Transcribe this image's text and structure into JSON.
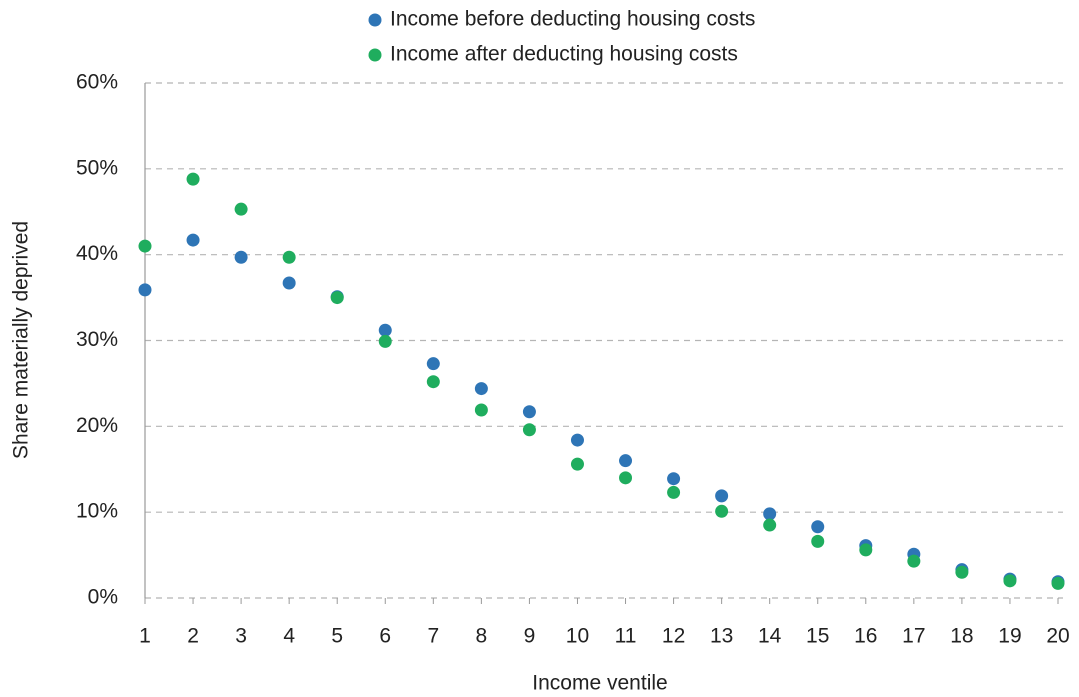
{
  "chart_data": {
    "type": "scatter",
    "x_label": "Income ventile",
    "y_label": "Share materially deprived",
    "x": [
      1,
      2,
      3,
      4,
      5,
      6,
      7,
      8,
      9,
      10,
      11,
      12,
      13,
      14,
      15,
      16,
      17,
      18,
      19,
      20
    ],
    "series": [
      {
        "name": "Income before deducting housing costs",
        "color": "#2e75b6",
        "values": [
          35.9,
          41.7,
          39.7,
          36.7,
          35.1,
          31.2,
          27.3,
          24.4,
          21.7,
          18.4,
          16.0,
          13.9,
          11.9,
          9.8,
          8.3,
          6.1,
          5.1,
          3.3,
          2.2,
          1.9
        ]
      },
      {
        "name": "Income after deducting housing costs",
        "color": "#1fad5e",
        "values": [
          41.0,
          48.8,
          45.3,
          39.7,
          35.0,
          29.9,
          25.2,
          21.9,
          19.6,
          15.6,
          14.0,
          12.3,
          10.1,
          8.5,
          6.6,
          5.6,
          4.3,
          3.0,
          2.0,
          1.7
        ]
      }
    ],
    "xlim": [
      1,
      20
    ],
    "xticks": [
      1,
      2,
      3,
      4,
      5,
      6,
      7,
      8,
      9,
      10,
      11,
      12,
      13,
      14,
      15,
      16,
      17,
      18,
      19,
      20
    ],
    "ylim": [
      0,
      60
    ],
    "yticks": [
      {
        "value": 0,
        "label": "0%"
      },
      {
        "value": 10,
        "label": "10%"
      },
      {
        "value": 20,
        "label": "20%"
      },
      {
        "value": 30,
        "label": "30%"
      },
      {
        "value": 40,
        "label": "40%"
      },
      {
        "value": 50,
        "label": "50%"
      },
      {
        "value": 60,
        "label": "60%"
      }
    ],
    "grid": true,
    "legend": "top"
  }
}
